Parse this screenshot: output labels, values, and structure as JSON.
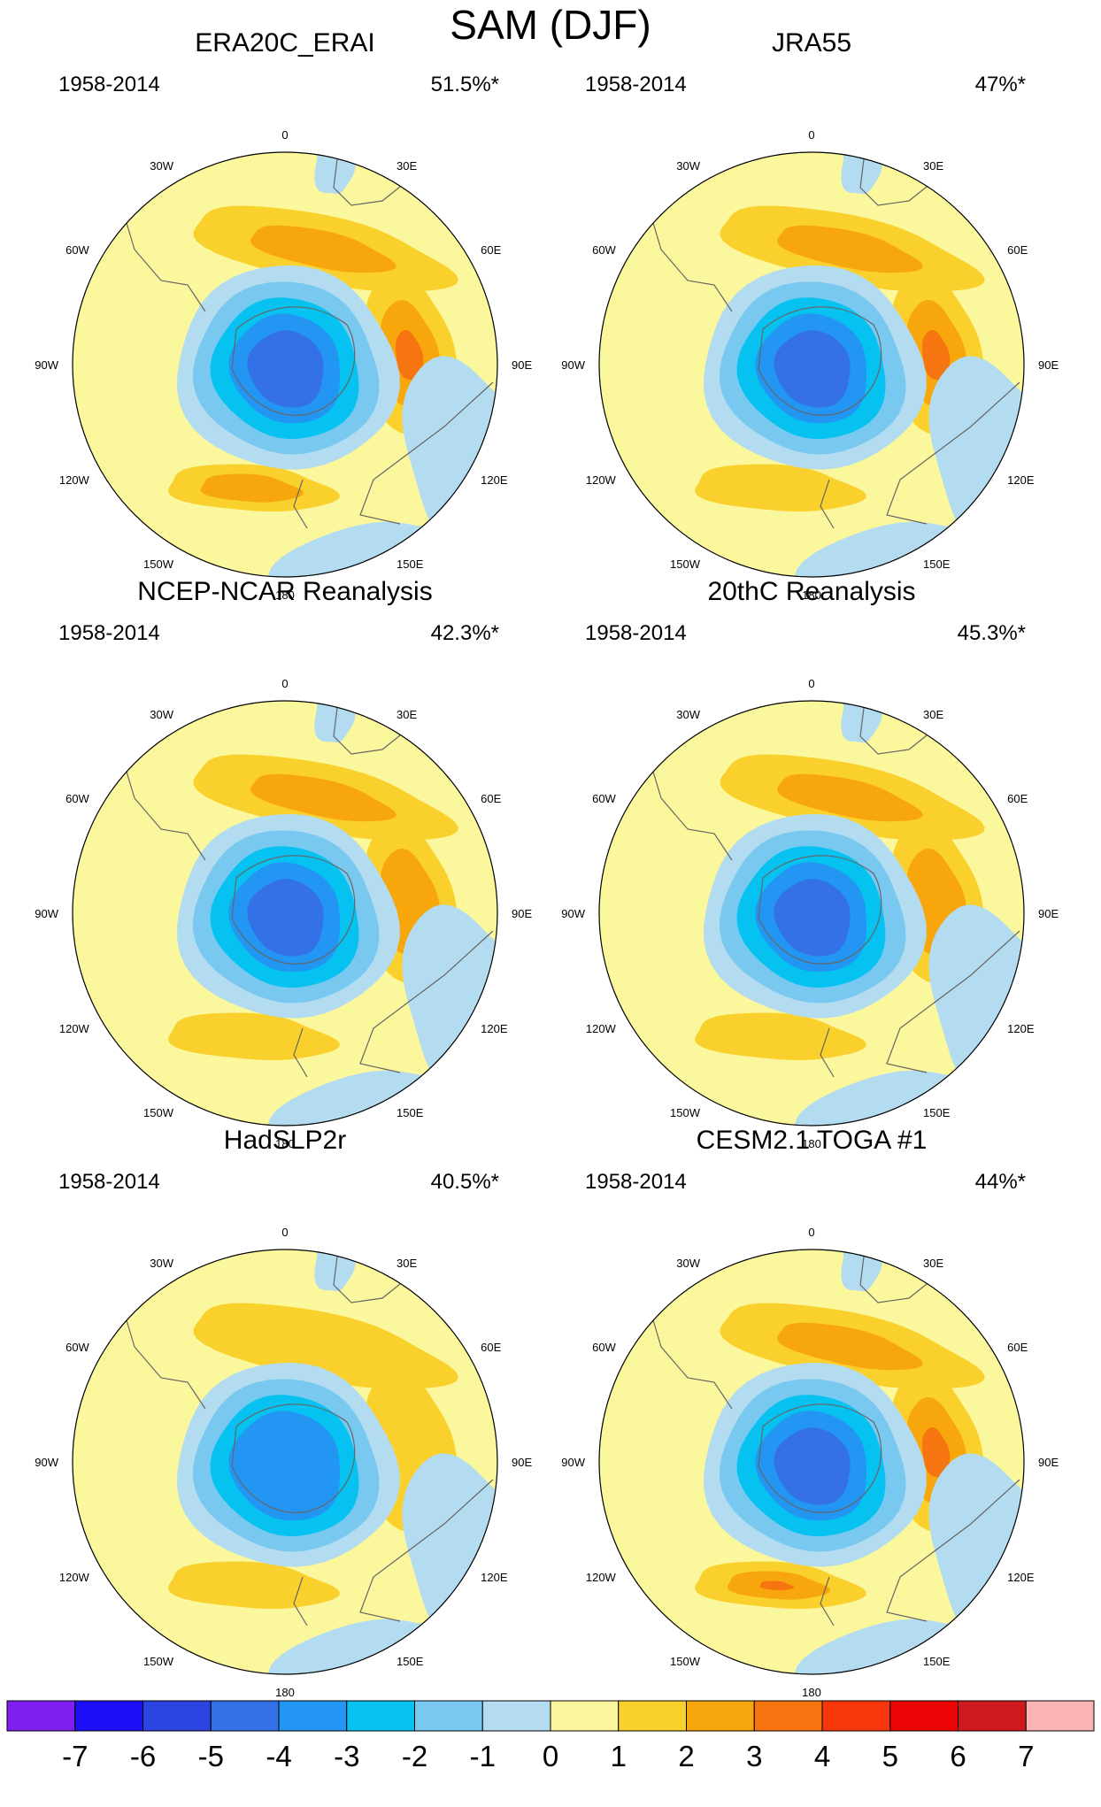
{
  "figure_title": "SAM (DJF)",
  "longitude_labels": [
    "0",
    "30E",
    "60E",
    "90E",
    "120E",
    "150E",
    "180",
    "150W",
    "120W",
    "90W",
    "60W",
    "30W"
  ],
  "panels": [
    {
      "title": "ERA20C_ERAI",
      "period": "1958-2014",
      "variance": "51.5%*",
      "features": {
        "low_min": -5,
        "high_east_max": 3,
        "high_west_max": 2,
        "high_south_max": 2
      }
    },
    {
      "title": "JRA55",
      "period": "1958-2014",
      "variance": "47%*",
      "features": {
        "low_min": -5,
        "high_east_max": 3,
        "high_west_max": 2,
        "high_south_max": 1
      }
    },
    {
      "title": "NCEP-NCAR Reanalysis",
      "period": "1958-2014",
      "variance": "42.3%*",
      "features": {
        "low_min": -5,
        "high_east_max": 2,
        "high_west_max": 2,
        "high_south_max": 1
      }
    },
    {
      "title": "20thC Reanalysis",
      "period": "1958-2014",
      "variance": "45.3%*",
      "features": {
        "low_min": -5,
        "high_east_max": 2,
        "high_west_max": 2,
        "high_south_max": 1
      }
    },
    {
      "title": "HadSLP2r",
      "period": "1958-2014",
      "variance": "40.5%*",
      "features": {
        "low_min": -4,
        "high_east_max": 1,
        "high_west_max": 1,
        "high_south_max": 1
      }
    },
    {
      "title": "CESM2.1 TOGA #1",
      "period": "1958-2014",
      "variance": "44%*",
      "features": {
        "low_min": -5,
        "high_east_max": 3,
        "high_west_max": 2,
        "high_south_max": 3
      }
    }
  ],
  "colorbar": {
    "labels": [
      "-7",
      "-6",
      "-5",
      "-4",
      "-3",
      "-2",
      "-1",
      "0",
      "1",
      "2",
      "3",
      "4",
      "5",
      "6",
      "7"
    ],
    "colors": [
      "#7f1ff0",
      "#1c0ff5",
      "#2c44e0",
      "#3470e6",
      "#2296f2",
      "#05c2f0",
      "#78c8f0",
      "#b4dcf0",
      "#fbf79c",
      "#fad02c",
      "#f7a70c",
      "#f77510",
      "#f7360c",
      "#eb0404",
      "#d0191c",
      "#fab4b4"
    ]
  },
  "palette": {
    "neg1": "#b4dcf0",
    "neg2": "#78c8f0",
    "neg3": "#05c2f0",
    "neg4": "#2296f2",
    "neg5": "#3470e6",
    "pos0": "#fbf79c",
    "pos1": "#fad02c",
    "pos2": "#f7a70c",
    "pos3": "#f77510"
  }
}
